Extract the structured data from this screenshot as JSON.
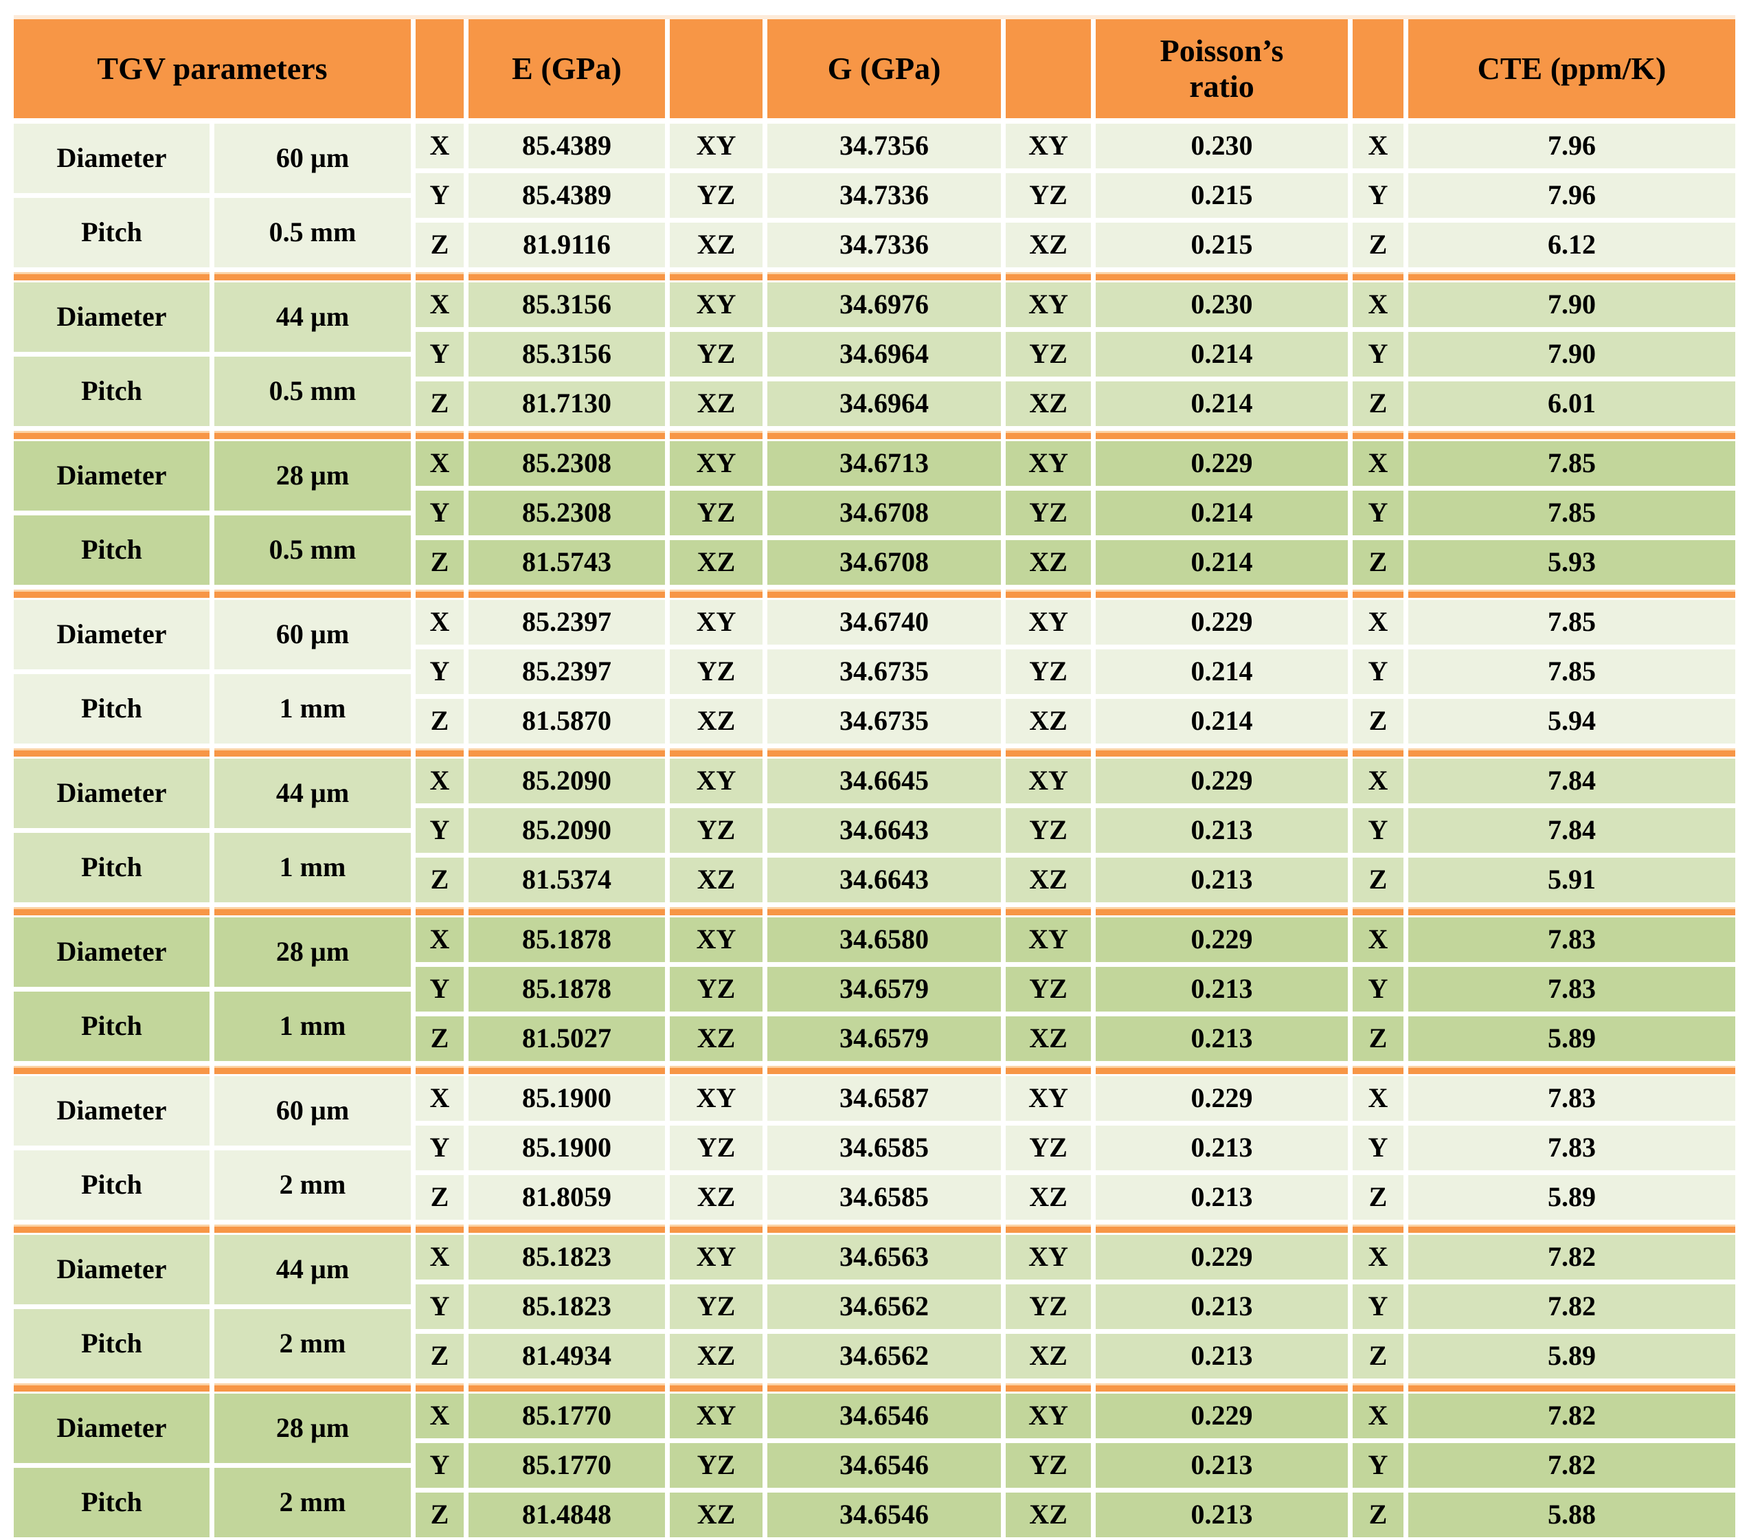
{
  "title": "TGV parameters material properties table",
  "colors": {
    "header_orange": "#F79646",
    "separator_orange": "#F79646",
    "pale_stripe": "#FDEBD9",
    "shade_cream": "#EDF2E1",
    "shade_light_green": "#D6E3BB",
    "shade_medium_green": "#C2D69B",
    "text": "#000000"
  },
  "header": {
    "tgv_parameters": "TGV parameters",
    "e_gpa": "E (GPa)",
    "g_gpa": "G (GPa)",
    "poissons_ratio": "Poisson’s ratio",
    "cte_ppmk": "CTE (ppm/K)"
  },
  "groups": [
    {
      "shade": "cream",
      "params": [
        {
          "label": "Diameter",
          "value": "60 µm"
        },
        {
          "label": "Pitch",
          "value": "0.5 mm"
        }
      ],
      "rows": [
        {
          "e_axis": "X",
          "e": "85.4389",
          "g_axis": "XY",
          "g": "34.7356",
          "nu_axis": "XY",
          "nu": "0.230",
          "cte_axis": "X",
          "cte": "7.96"
        },
        {
          "e_axis": "Y",
          "e": "85.4389",
          "g_axis": "YZ",
          "g": "34.7336",
          "nu_axis": "YZ",
          "nu": "0.215",
          "cte_axis": "Y",
          "cte": "7.96"
        },
        {
          "e_axis": "Z",
          "e": "81.9116",
          "g_axis": "XZ",
          "g": "34.7336",
          "nu_axis": "XZ",
          "nu": "0.215",
          "cte_axis": "Z",
          "cte": "6.12"
        }
      ]
    },
    {
      "shade": "light",
      "params": [
        {
          "label": "Diameter",
          "value": "44 µm"
        },
        {
          "label": "Pitch",
          "value": "0.5 mm"
        }
      ],
      "rows": [
        {
          "e_axis": "X",
          "e": "85.3156",
          "g_axis": "XY",
          "g": "34.6976",
          "nu_axis": "XY",
          "nu": "0.230",
          "cte_axis": "X",
          "cte": "7.90"
        },
        {
          "e_axis": "Y",
          "e": "85.3156",
          "g_axis": "YZ",
          "g": "34.6964",
          "nu_axis": "YZ",
          "nu": "0.214",
          "cte_axis": "Y",
          "cte": "7.90"
        },
        {
          "e_axis": "Z",
          "e": "81.7130",
          "g_axis": "XZ",
          "g": "34.6964",
          "nu_axis": "XZ",
          "nu": "0.214",
          "cte_axis": "Z",
          "cte": "6.01"
        }
      ]
    },
    {
      "shade": "medium",
      "params": [
        {
          "label": "Diameter",
          "value": "28 µm"
        },
        {
          "label": "Pitch",
          "value": "0.5 mm"
        }
      ],
      "rows": [
        {
          "e_axis": "X",
          "e": "85.2308",
          "g_axis": "XY",
          "g": "34.6713",
          "nu_axis": "XY",
          "nu": "0.229",
          "cte_axis": "X",
          "cte": "7.85"
        },
        {
          "e_axis": "Y",
          "e": "85.2308",
          "g_axis": "YZ",
          "g": "34.6708",
          "nu_axis": "YZ",
          "nu": "0.214",
          "cte_axis": "Y",
          "cte": "7.85"
        },
        {
          "e_axis": "Z",
          "e": "81.5743",
          "g_axis": "XZ",
          "g": "34.6708",
          "nu_axis": "XZ",
          "nu": "0.214",
          "cte_axis": "Z",
          "cte": "5.93"
        }
      ]
    },
    {
      "shade": "cream",
      "params": [
        {
          "label": "Diameter",
          "value": "60 µm"
        },
        {
          "label": "Pitch",
          "value": "1 mm"
        }
      ],
      "rows": [
        {
          "e_axis": "X",
          "e": "85.2397",
          "g_axis": "XY",
          "g": "34.6740",
          "nu_axis": "XY",
          "nu": "0.229",
          "cte_axis": "X",
          "cte": "7.85"
        },
        {
          "e_axis": "Y",
          "e": "85.2397",
          "g_axis": "YZ",
          "g": "34.6735",
          "nu_axis": "YZ",
          "nu": "0.214",
          "cte_axis": "Y",
          "cte": "7.85"
        },
        {
          "e_axis": "Z",
          "e": "81.5870",
          "g_axis": "XZ",
          "g": "34.6735",
          "nu_axis": "XZ",
          "nu": "0.214",
          "cte_axis": "Z",
          "cte": "5.94"
        }
      ]
    },
    {
      "shade": "light",
      "params": [
        {
          "label": "Diameter",
          "value": "44 µm"
        },
        {
          "label": "Pitch",
          "value": "1 mm"
        }
      ],
      "rows": [
        {
          "e_axis": "X",
          "e": "85.2090",
          "g_axis": "XY",
          "g": "34.6645",
          "nu_axis": "XY",
          "nu": "0.229",
          "cte_axis": "X",
          "cte": "7.84"
        },
        {
          "e_axis": "Y",
          "e": "85.2090",
          "g_axis": "YZ",
          "g": "34.6643",
          "nu_axis": "YZ",
          "nu": "0.213",
          "cte_axis": "Y",
          "cte": "7.84"
        },
        {
          "e_axis": "Z",
          "e": "81.5374",
          "g_axis": "XZ",
          "g": "34.6643",
          "nu_axis": "XZ",
          "nu": "0.213",
          "cte_axis": "Z",
          "cte": "5.91"
        }
      ]
    },
    {
      "shade": "medium",
      "params": [
        {
          "label": "Diameter",
          "value": "28 µm"
        },
        {
          "label": "Pitch",
          "value": "1 mm"
        }
      ],
      "rows": [
        {
          "e_axis": "X",
          "e": "85.1878",
          "g_axis": "XY",
          "g": "34.6580",
          "nu_axis": "XY",
          "nu": "0.229",
          "cte_axis": "X",
          "cte": "7.83"
        },
        {
          "e_axis": "Y",
          "e": "85.1878",
          "g_axis": "YZ",
          "g": "34.6579",
          "nu_axis": "YZ",
          "nu": "0.213",
          "cte_axis": "Y",
          "cte": "7.83"
        },
        {
          "e_axis": "Z",
          "e": "81.5027",
          "g_axis": "XZ",
          "g": "34.6579",
          "nu_axis": "XZ",
          "nu": "0.213",
          "cte_axis": "Z",
          "cte": "5.89"
        }
      ]
    },
    {
      "shade": "cream",
      "params": [
        {
          "label": "Diameter",
          "value": "60 µm"
        },
        {
          "label": "Pitch",
          "value": "2 mm"
        }
      ],
      "rows": [
        {
          "e_axis": "X",
          "e": "85.1900",
          "g_axis": "XY",
          "g": "34.6587",
          "nu_axis": "XY",
          "nu": "0.229",
          "cte_axis": "X",
          "cte": "7.83"
        },
        {
          "e_axis": "Y",
          "e": "85.1900",
          "g_axis": "YZ",
          "g": "34.6585",
          "nu_axis": "YZ",
          "nu": "0.213",
          "cte_axis": "Y",
          "cte": "7.83"
        },
        {
          "e_axis": "Z",
          "e": "81.8059",
          "g_axis": "XZ",
          "g": "34.6585",
          "nu_axis": "XZ",
          "nu": "0.213",
          "cte_axis": "Z",
          "cte": "5.89"
        }
      ]
    },
    {
      "shade": "light",
      "params": [
        {
          "label": "Diameter",
          "value": "44 µm"
        },
        {
          "label": "Pitch",
          "value": "2 mm"
        }
      ],
      "rows": [
        {
          "e_axis": "X",
          "e": "85.1823",
          "g_axis": "XY",
          "g": "34.6563",
          "nu_axis": "XY",
          "nu": "0.229",
          "cte_axis": "X",
          "cte": "7.82"
        },
        {
          "e_axis": "Y",
          "e": "85.1823",
          "g_axis": "YZ",
          "g": "34.6562",
          "nu_axis": "YZ",
          "nu": "0.213",
          "cte_axis": "Y",
          "cte": "7.82"
        },
        {
          "e_axis": "Z",
          "e": "81.4934",
          "g_axis": "XZ",
          "g": "34.6562",
          "nu_axis": "XZ",
          "nu": "0.213",
          "cte_axis": "Z",
          "cte": "5.89"
        }
      ]
    },
    {
      "shade": "medium",
      "params": [
        {
          "label": "Diameter",
          "value": "28 µm"
        },
        {
          "label": "Pitch",
          "value": "2 mm"
        }
      ],
      "rows": [
        {
          "e_axis": "X",
          "e": "85.1770",
          "g_axis": "XY",
          "g": "34.6546",
          "nu_axis": "XY",
          "nu": "0.229",
          "cte_axis": "X",
          "cte": "7.82"
        },
        {
          "e_axis": "Y",
          "e": "85.1770",
          "g_axis": "YZ",
          "g": "34.6546",
          "nu_axis": "YZ",
          "nu": "0.213",
          "cte_axis": "Y",
          "cte": "7.82"
        },
        {
          "e_axis": "Z",
          "e": "81.4848",
          "g_axis": "XZ",
          "g": "34.6546",
          "nu_axis": "XZ",
          "nu": "0.213",
          "cte_axis": "Z",
          "cte": "5.88"
        }
      ]
    }
  ]
}
